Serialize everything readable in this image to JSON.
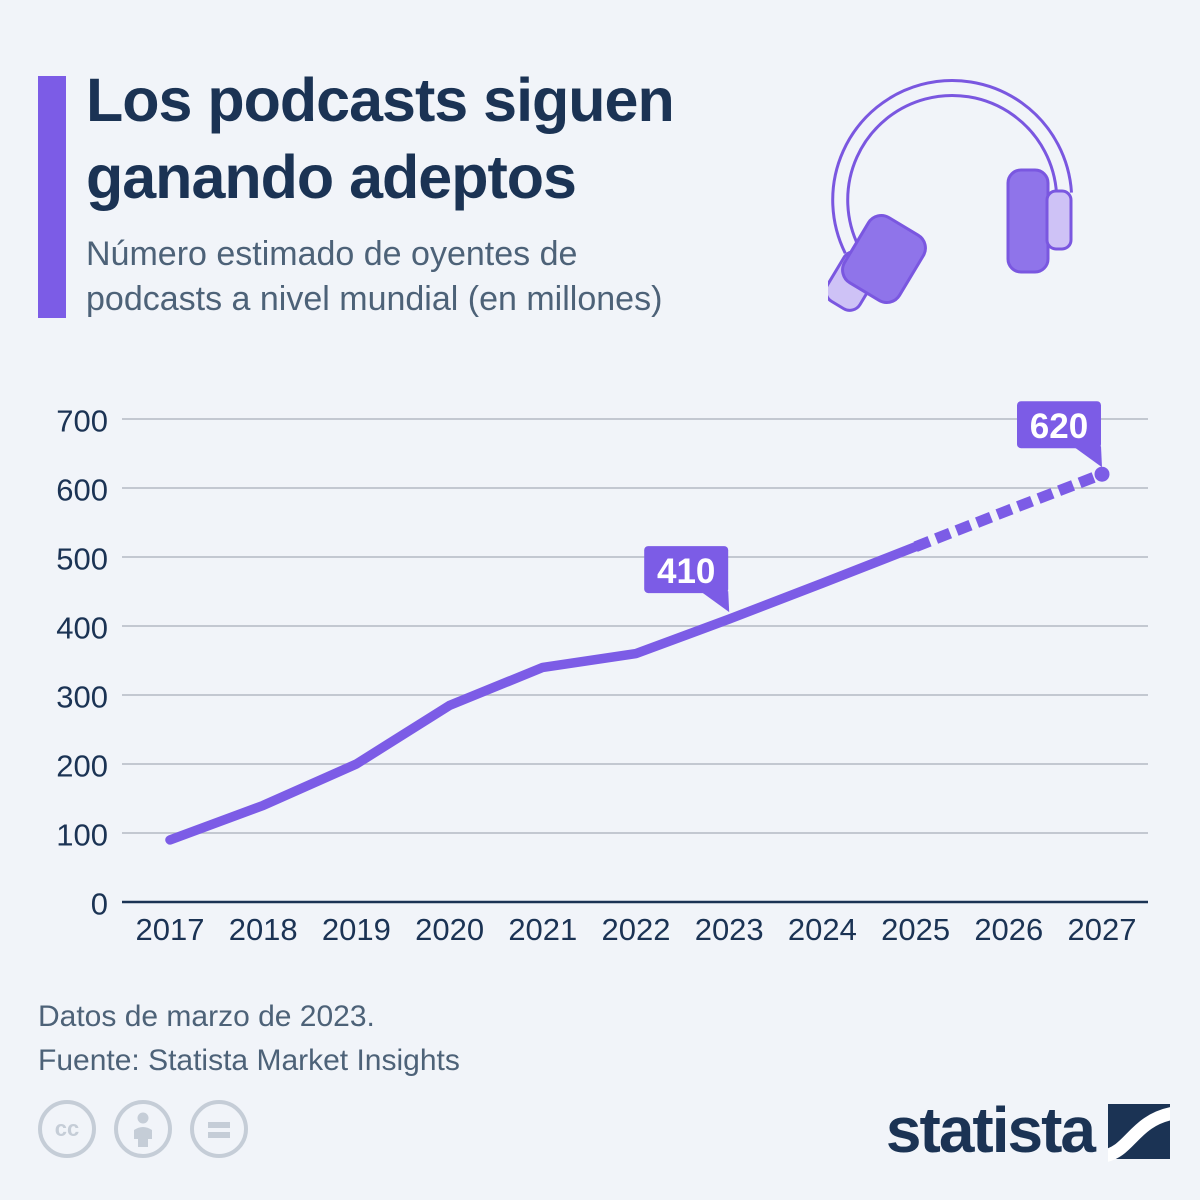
{
  "header": {
    "title_line1": "Los podcasts siguen",
    "title_line2": "ganando adeptos",
    "subtitle_line1": "Número estimado de oyentes de",
    "subtitle_line2": "podcasts a nivel mundial (en millones)"
  },
  "colors": {
    "background": "#f1f4f9",
    "navy": "#1B3354",
    "text_muted": "#4d6278",
    "accent_purple": "#7C5CE6",
    "cup_purple": "#8F74EA",
    "cushion_purple": "#CEC2F6",
    "outline_purple": "#7A57E0",
    "gridline": "#b4bac4",
    "license_gray": "#c5cdd7",
    "callout_text": "#ffffff"
  },
  "chart_data": {
    "type": "line",
    "title": "Número estimado de oyentes de podcasts a nivel mundial (en millones)",
    "categories": [
      2017,
      2018,
      2019,
      2020,
      2021,
      2022,
      2023,
      2024,
      2025,
      2026,
      2027
    ],
    "values": [
      90,
      140,
      200,
      285,
      340,
      360,
      410,
      462,
      515,
      568,
      620
    ],
    "yticks": [
      0,
      100,
      200,
      300,
      400,
      500,
      600,
      700
    ],
    "ylim": [
      0,
      700
    ],
    "xlabel": "",
    "ylabel": "",
    "grid": true,
    "legend": "none",
    "forecast_dashed_from": 2025,
    "callouts": [
      {
        "category": 2023,
        "label": "410"
      },
      {
        "category": 2027,
        "label": "620"
      }
    ]
  },
  "footer": {
    "note": "Datos de marzo de 2023.",
    "source": "Fuente: Statista Market Insights"
  },
  "license": {
    "icons": [
      "cc-icon",
      "attribution-person-icon",
      "equals-icon"
    ]
  },
  "branding": {
    "logo_text": "statista"
  }
}
